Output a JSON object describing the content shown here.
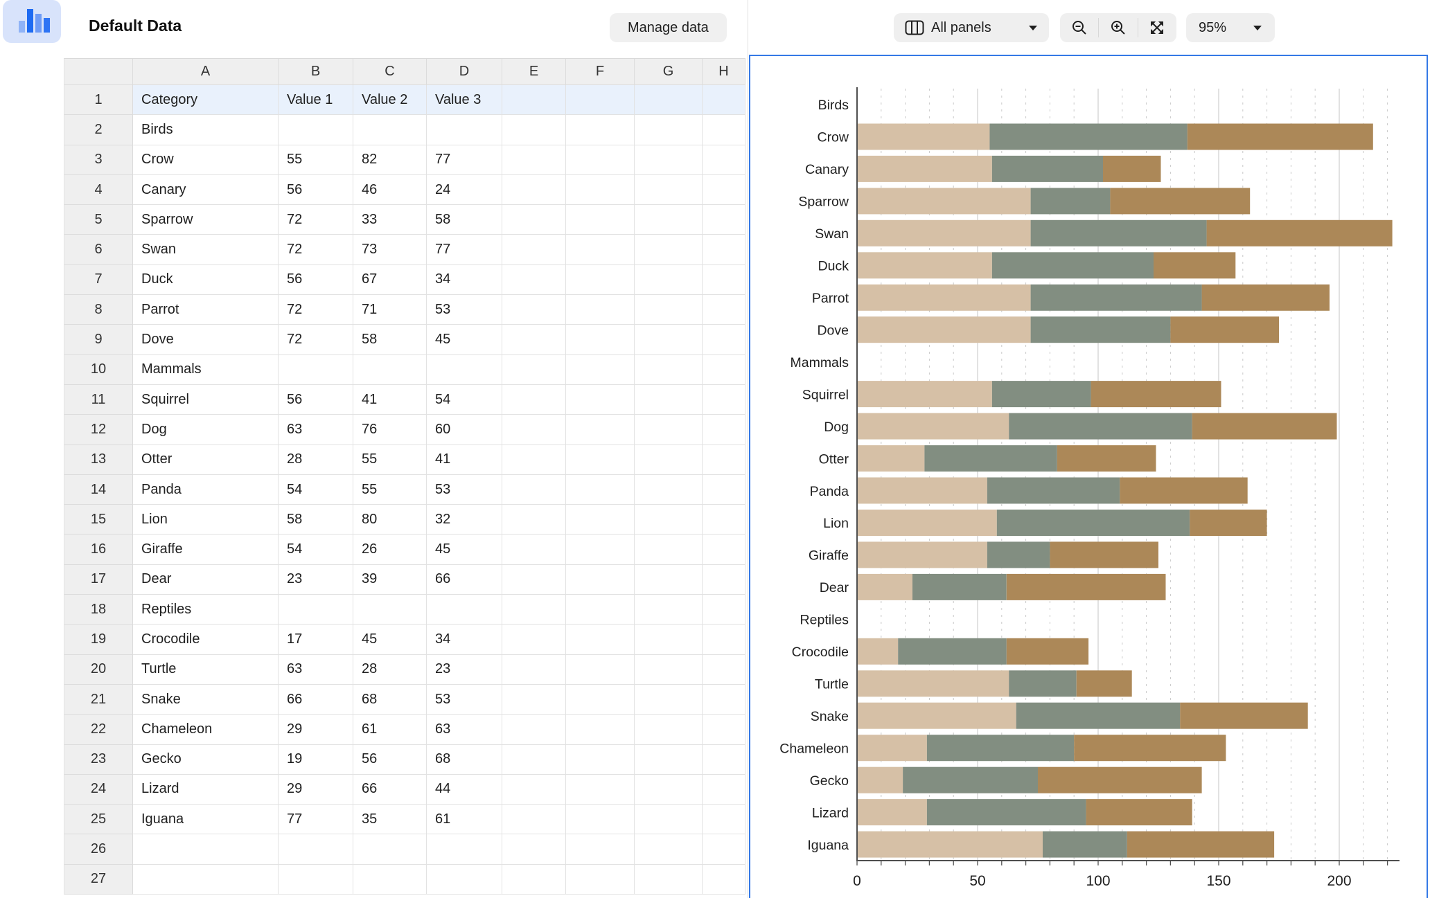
{
  "app": {
    "accent_blue": "#3579e6",
    "logo_bar_colors": [
      "#8fb3f7",
      "#1e6bf2",
      "#6f9cf6",
      "#2e74f4"
    ]
  },
  "header": {
    "title": "Default Data",
    "manage_button": "Manage data"
  },
  "toolbar": {
    "panels_label": "All panels",
    "zoom_value": "95%",
    "icons": [
      "panels-icon",
      "zoom-out-icon",
      "zoom-in-icon",
      "fullscreen-icon",
      "caret-down-icon"
    ]
  },
  "spreadsheet": {
    "columns": [
      "A",
      "B",
      "C",
      "D",
      "E",
      "F",
      "G",
      "H"
    ],
    "rows": [
      {
        "n": 1,
        "cells": [
          "Category",
          "Value 1",
          "Value 2",
          "Value 3"
        ],
        "highlight": true
      },
      {
        "n": 2,
        "cells": [
          "Birds"
        ]
      },
      {
        "n": 3,
        "cells": [
          "Crow",
          55,
          82,
          77
        ]
      },
      {
        "n": 4,
        "cells": [
          "Canary",
          56,
          46,
          24
        ]
      },
      {
        "n": 5,
        "cells": [
          "Sparrow",
          72,
          33,
          58
        ]
      },
      {
        "n": 6,
        "cells": [
          "Swan",
          72,
          73,
          77
        ]
      },
      {
        "n": 7,
        "cells": [
          "Duck",
          56,
          67,
          34
        ]
      },
      {
        "n": 8,
        "cells": [
          "Parrot",
          72,
          71,
          53
        ]
      },
      {
        "n": 9,
        "cells": [
          "Dove",
          72,
          58,
          45
        ]
      },
      {
        "n": 10,
        "cells": [
          "Mammals"
        ]
      },
      {
        "n": 11,
        "cells": [
          "Squirrel",
          56,
          41,
          54
        ]
      },
      {
        "n": 12,
        "cells": [
          "Dog",
          63,
          76,
          60
        ]
      },
      {
        "n": 13,
        "cells": [
          "Otter",
          28,
          55,
          41
        ]
      },
      {
        "n": 14,
        "cells": [
          "Panda",
          54,
          55,
          53
        ]
      },
      {
        "n": 15,
        "cells": [
          "Lion",
          58,
          80,
          32
        ]
      },
      {
        "n": 16,
        "cells": [
          "Giraffe",
          54,
          26,
          45
        ]
      },
      {
        "n": 17,
        "cells": [
          "Dear",
          23,
          39,
          66
        ]
      },
      {
        "n": 18,
        "cells": [
          "Reptiles"
        ]
      },
      {
        "n": 19,
        "cells": [
          "Crocodile",
          17,
          45,
          34
        ]
      },
      {
        "n": 20,
        "cells": [
          "Turtle",
          63,
          28,
          23
        ]
      },
      {
        "n": 21,
        "cells": [
          "Snake",
          66,
          68,
          53
        ]
      },
      {
        "n": 22,
        "cells": [
          "Chameleon",
          29,
          61,
          63
        ]
      },
      {
        "n": 23,
        "cells": [
          "Gecko",
          19,
          56,
          68
        ]
      },
      {
        "n": 24,
        "cells": [
          "Lizard",
          29,
          66,
          44
        ]
      },
      {
        "n": 25,
        "cells": [
          "Iguana",
          77,
          35,
          61
        ]
      },
      {
        "n": 26,
        "cells": []
      },
      {
        "n": 27,
        "cells": []
      }
    ]
  },
  "chart_data": {
    "type": "bar",
    "orientation": "horizontal",
    "stacked": true,
    "title": "",
    "xlabel": "",
    "ylabel": "",
    "xlim": [
      0,
      225
    ],
    "xticks": [
      0,
      50,
      100,
      150,
      200
    ],
    "minor_tick_step": 10,
    "grid": "major-solid, minor-dashed",
    "legend": "none",
    "group_rows": [
      "Birds",
      "Mammals",
      "Reptiles"
    ],
    "categories": [
      "Birds",
      "Crow",
      "Canary",
      "Sparrow",
      "Swan",
      "Duck",
      "Parrot",
      "Dove",
      "Mammals",
      "Squirrel",
      "Dog",
      "Otter",
      "Panda",
      "Lion",
      "Giraffe",
      "Dear",
      "Reptiles",
      "Crocodile",
      "Turtle",
      "Snake",
      "Chameleon",
      "Gecko",
      "Lizard",
      "Iguana"
    ],
    "series": [
      {
        "name": "Value 1",
        "color": "#d6c0a6",
        "values": [
          null,
          55,
          56,
          72,
          72,
          56,
          72,
          72,
          null,
          56,
          63,
          28,
          54,
          58,
          54,
          23,
          null,
          17,
          63,
          66,
          29,
          19,
          29,
          77
        ]
      },
      {
        "name": "Value 2",
        "color": "#828e81",
        "values": [
          null,
          82,
          46,
          33,
          73,
          67,
          71,
          58,
          null,
          41,
          76,
          55,
          55,
          80,
          26,
          39,
          null,
          45,
          28,
          68,
          61,
          56,
          66,
          35
        ]
      },
      {
        "name": "Value 3",
        "color": "#ac8858",
        "values": [
          null,
          77,
          24,
          58,
          77,
          34,
          53,
          45,
          null,
          54,
          60,
          41,
          53,
          32,
          45,
          66,
          null,
          34,
          23,
          53,
          63,
          68,
          44,
          61
        ]
      }
    ],
    "style": {
      "axis_color": "#4f4f4f",
      "grid_major_color": "#d9d9d9",
      "grid_minor_color": "#c9c9c9",
      "label_color": "#1f1f1f"
    }
  }
}
